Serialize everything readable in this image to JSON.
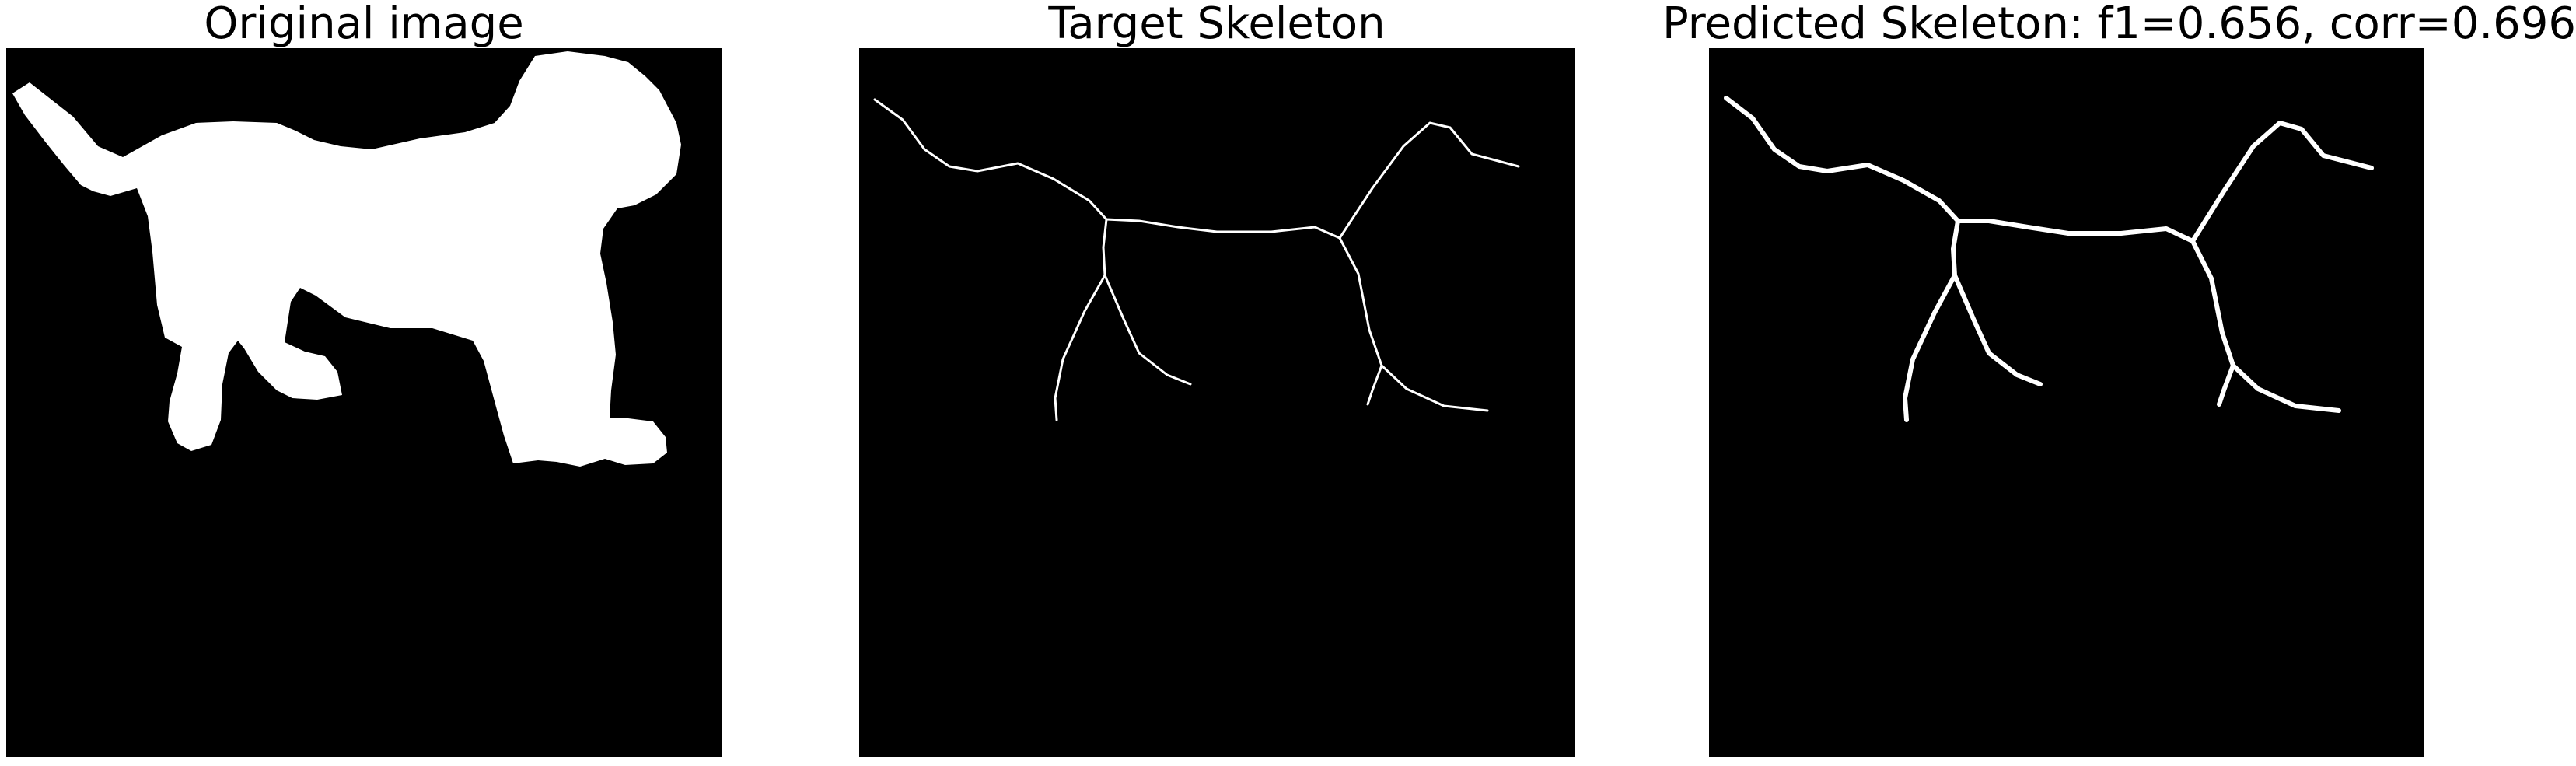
{
  "panels": [
    {
      "title": "Original image",
      "kind": "silhouette"
    },
    {
      "title": "Target Skeleton",
      "kind": "skeleton-thin"
    },
    {
      "title": "Predicted Skeleton: f1=0.656, corr=0.696",
      "kind": "skeleton-thick"
    }
  ],
  "colors": {
    "background": "#000000",
    "foreground": "#ffffff",
    "page": "#ffffff"
  }
}
